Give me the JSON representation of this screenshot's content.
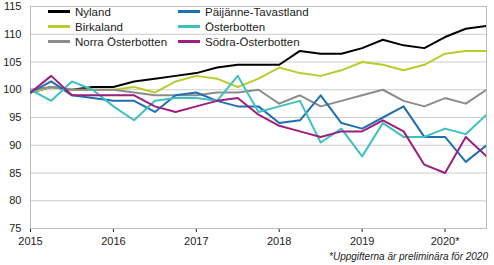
{
  "chart_data": {
    "type": "line",
    "caption": "*Uppgifterna är preliminära för 2020",
    "legend": "top",
    "grid": true,
    "x": [
      2015,
      2015.25,
      2015.5,
      2015.75,
      2016,
      2016.25,
      2016.5,
      2016.75,
      2017,
      2017.25,
      2017.5,
      2017.75,
      2018,
      2018.25,
      2018.5,
      2018.75,
      2019,
      2019.25,
      2019.5,
      2019.75,
      2020,
      2020.25,
      2020.5
    ],
    "xlim": [
      2015,
      2020.5
    ],
    "xticks": [
      2015,
      2016,
      2017,
      2018,
      2019,
      {
        "value": 2020,
        "label": "2020*"
      }
    ],
    "ylim": [
      75,
      115
    ],
    "yticks": [
      75,
      80,
      85,
      90,
      95,
      100,
      105,
      110,
      115
    ],
    "series": [
      {
        "name": "Nyland",
        "color": "#000000",
        "values": [
          99.5,
          100.5,
          100,
          100.5,
          100.5,
          101.5,
          102,
          102.5,
          103,
          104,
          104.5,
          104.5,
          104.5,
          107,
          106.5,
          106.5,
          107.5,
          109,
          108,
          107.5,
          109.5,
          111,
          111.5
        ]
      },
      {
        "name": "Birkaland",
        "color": "#b9cc2e",
        "values": [
          99.5,
          100.5,
          100,
          100,
          100,
          100.5,
          99.5,
          101.5,
          102.5,
          102,
          100.5,
          102,
          104,
          103,
          102.5,
          103.5,
          105,
          104.5,
          103.5,
          104.5,
          106.5,
          107,
          107
        ]
      },
      {
        "name": "Norra Österbotten",
        "color": "#8c8c8c",
        "values": [
          100,
          100.5,
          100,
          100,
          100,
          99.5,
          99,
          99,
          99,
          99.5,
          99.5,
          100,
          97.5,
          99,
          97,
          98,
          99,
          100,
          98,
          97,
          98.5,
          97.5,
          100
        ]
      },
      {
        "name": "Päijänne-Tavastland",
        "color": "#1f6fb4",
        "values": [
          99.5,
          101.5,
          99,
          98.5,
          98,
          98,
          96,
          99,
          99.5,
          98,
          97,
          97,
          94,
          94.5,
          99,
          94,
          93,
          95,
          97,
          91.5,
          91.5,
          87,
          90
        ]
      },
      {
        "name": "Österbotten",
        "color": "#3ec0c0",
        "values": [
          100,
          98,
          101.5,
          100,
          97,
          94.5,
          98,
          98.5,
          98.5,
          98,
          102.5,
          96,
          97,
          98,
          90.5,
          93,
          88,
          94,
          91.5,
          91.5,
          93,
          92,
          95.5
        ]
      },
      {
        "name": "Södra-Österbotten",
        "color": "#9c1f7e",
        "values": [
          99.5,
          102.5,
          99,
          99,
          99,
          99,
          97,
          96,
          97,
          98,
          98.5,
          95.5,
          93.5,
          92.5,
          91.5,
          92.5,
          92.5,
          94.5,
          92.5,
          86.5,
          85,
          91.5,
          88
        ]
      }
    ]
  }
}
